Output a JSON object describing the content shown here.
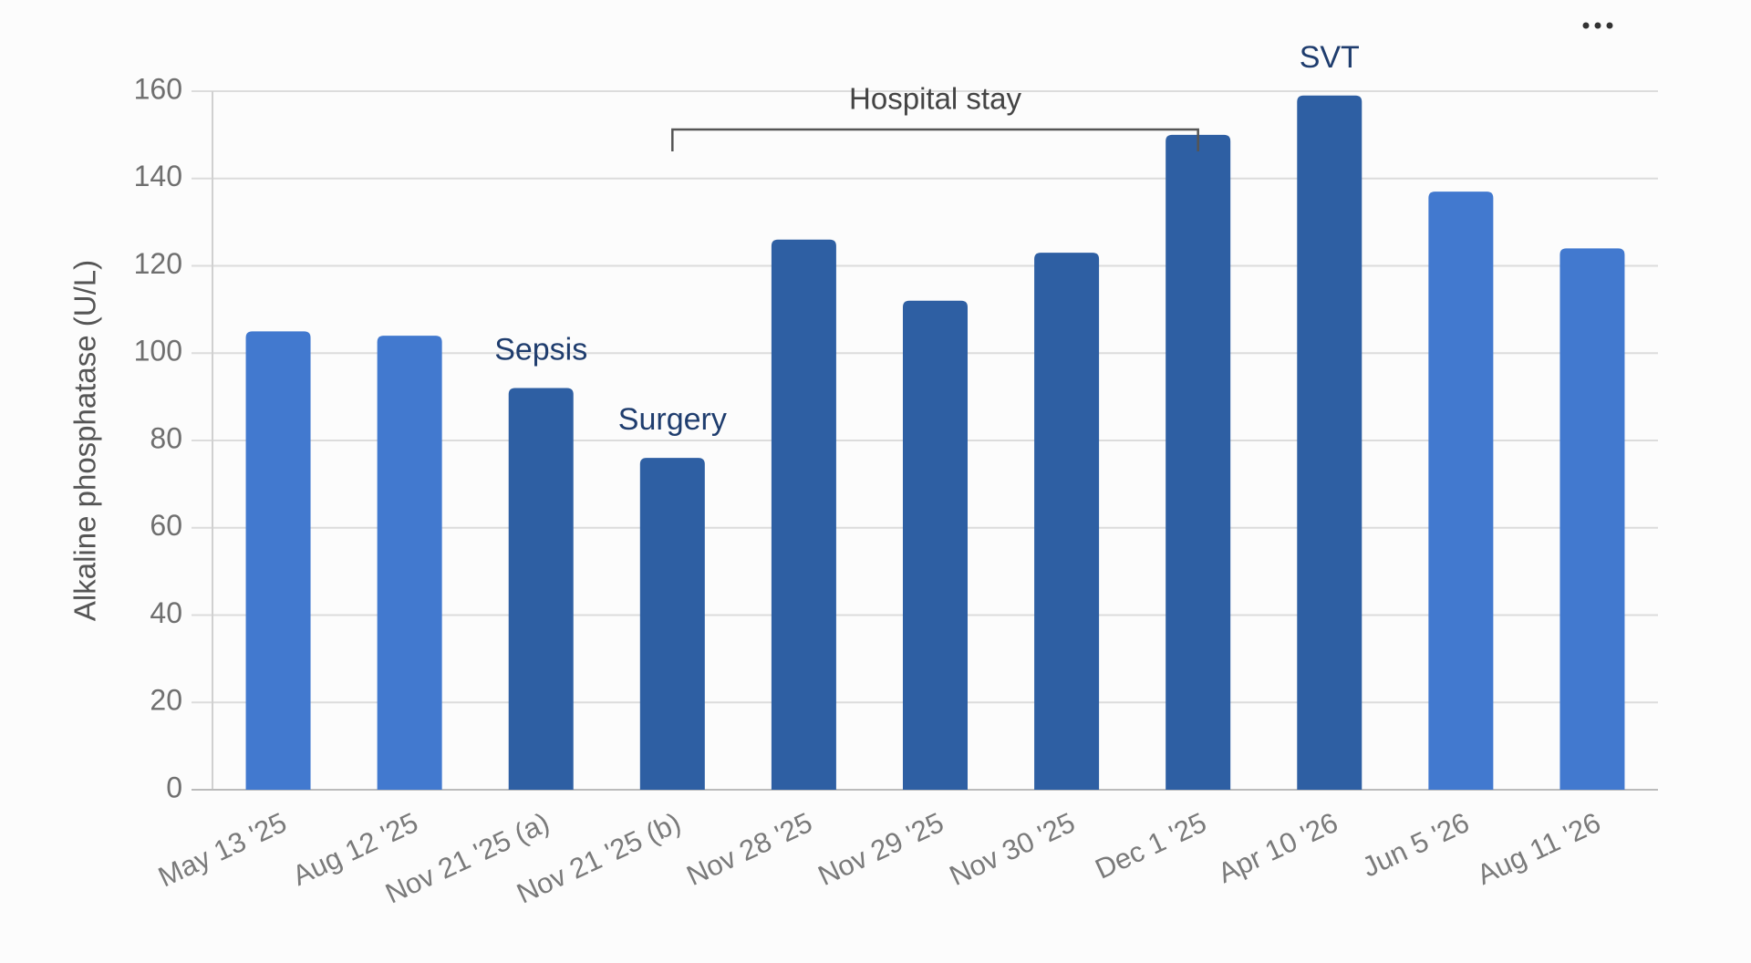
{
  "chart_data": {
    "type": "bar",
    "y_label": "Alkaline phosphatase (U/L)",
    "categories": [
      "May 13 '25",
      "Aug 12 '25",
      "Nov 21 '25 (a)",
      "Nov 21 '25 (b)",
      "Nov 28 '25",
      "Nov 29 '25",
      "Nov 30 '25",
      "Dec 1 '25",
      "Apr 10 '26",
      "Jun 5 '26",
      "Aug 11 '26"
    ],
    "values": [
      105,
      104,
      92,
      76,
      126,
      112,
      123,
      150,
      159,
      137,
      124
    ],
    "colors": [
      "#4279cf",
      "#4279cf",
      "#2e5fa3",
      "#2e5fa3",
      "#2e5fa3",
      "#2e5fa3",
      "#2e5fa3",
      "#2e5fa3",
      "#2e5fa3",
      "#4279cf",
      "#4279cf"
    ],
    "ylim": [
      0,
      160
    ],
    "yticks": [
      0,
      20,
      40,
      60,
      80,
      100,
      120,
      140,
      160
    ],
    "grid": true,
    "annotations": [
      {
        "text": "Sepsis",
        "category": "Nov 21 '25 (a)"
      },
      {
        "text": "Surgery",
        "category": "Nov 21 '25 (b)"
      },
      {
        "text": "SVT",
        "category": "Apr 10 '26"
      }
    ],
    "bracket": {
      "text": "Hospital stay",
      "from": "Nov 21 '25 (b)",
      "to": "Dec 1 '25"
    }
  }
}
